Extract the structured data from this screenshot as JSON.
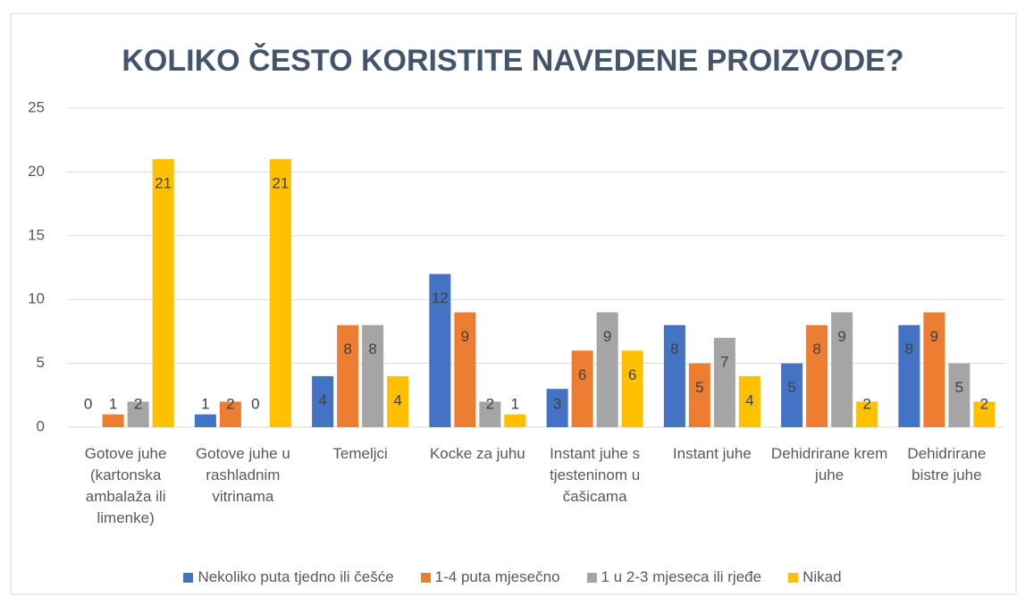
{
  "chart_data": {
    "type": "bar",
    "title": "KOLIKO ČESTO KORISTITE NAVEDENE PROIZVODE?",
    "categories": [
      "Gotove juhe (kartonska ambalaža ili limenke)",
      "Gotove juhe u rashladnim vitrinama",
      "Temeljci",
      "Kocke za juhu",
      "Instant juhe s tjesteninom u čašicama",
      "Instant juhe",
      "Dehidrirane krem juhe",
      "Dehidrirane bistre juhe"
    ],
    "series": [
      {
        "name": "Nekoliko puta tjedno ili češće",
        "color": "#4472c4",
        "values": [
          0,
          1,
          4,
          12,
          3,
          8,
          5,
          8
        ]
      },
      {
        "name": "1-4 puta mjesečno",
        "color": "#ed7d31",
        "values": [
          1,
          2,
          8,
          9,
          6,
          5,
          8,
          9
        ]
      },
      {
        "name": "1 u 2-3 mjeseca ili rjeđe",
        "color": "#a5a5a5",
        "values": [
          2,
          0,
          8,
          2,
          9,
          7,
          9,
          5
        ]
      },
      {
        "name": "Nikad",
        "color": "#ffc000",
        "values": [
          21,
          21,
          4,
          1,
          6,
          4,
          2,
          2
        ]
      }
    ],
    "ylim": [
      0,
      25
    ],
    "yticks": [
      0,
      5,
      10,
      15,
      20,
      25
    ],
    "grid": true,
    "legend": "bottom"
  }
}
